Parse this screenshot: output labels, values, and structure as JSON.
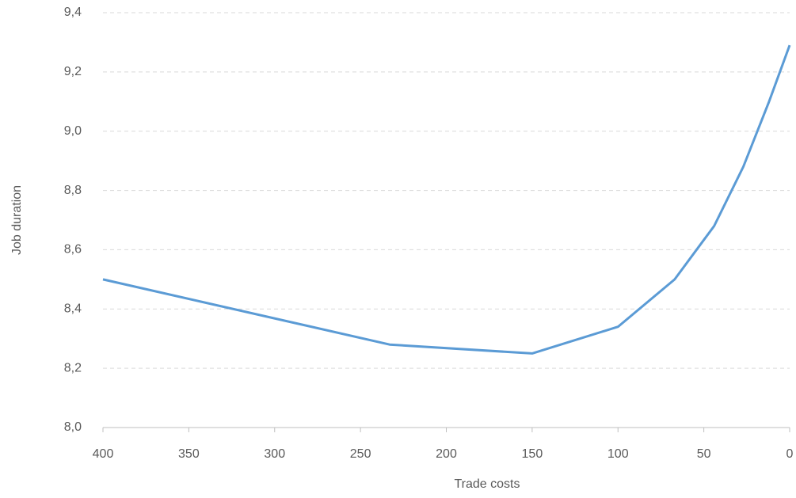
{
  "chart_data": {
    "type": "line",
    "x_label": "Trade costs",
    "y_label": "Job duration",
    "x": [
      400,
      233,
      150,
      100,
      67,
      44,
      27,
      12,
      0
    ],
    "series": [
      {
        "name": "Job duration",
        "color": "#5b9bd5",
        "values": [
          8.5,
          8.28,
          8.25,
          8.34,
          8.5,
          8.68,
          8.88,
          9.1,
          9.29
        ]
      }
    ],
    "xlim": [
      400,
      0
    ],
    "xticks": [
      400,
      350,
      300,
      250,
      200,
      150,
      100,
      50,
      0
    ],
    "ylim": [
      8.0,
      9.4
    ],
    "yticks": [
      {
        "value": 8.0,
        "label": "8,0"
      },
      {
        "value": 8.2,
        "label": "8,2"
      },
      {
        "value": 8.4,
        "label": "8,4"
      },
      {
        "value": 8.6,
        "label": "8,6"
      },
      {
        "value": 8.8,
        "label": "8,8"
      },
      {
        "value": 9.0,
        "label": "9,0"
      },
      {
        "value": 9.2,
        "label": "9,2"
      },
      {
        "value": 9.4,
        "label": "9,4"
      }
    ],
    "grid": true
  }
}
